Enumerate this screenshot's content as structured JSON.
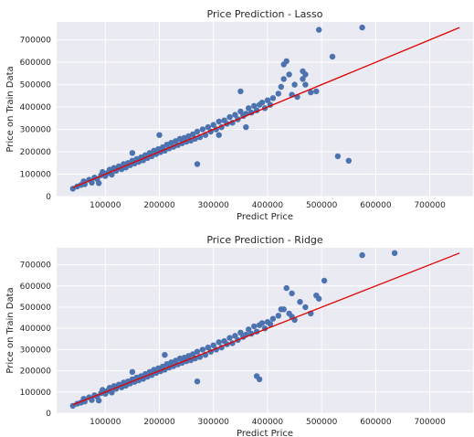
{
  "chart_data": [
    {
      "type": "scatter",
      "title": "Price Prediction - Lasso",
      "xlabel": "Predict Price",
      "ylabel": "Price on Train Data",
      "xlim": [
        10000,
        780000
      ],
      "ylim": [
        0,
        780000
      ],
      "xticks": [
        100000,
        200000,
        300000,
        400000,
        500000,
        600000,
        700000
      ],
      "yticks": [
        0,
        100000,
        200000,
        300000,
        400000,
        500000,
        600000,
        700000
      ],
      "grid": true,
      "series": [
        {
          "color": "#4c72b0",
          "points": [
            [
              40000,
              35000
            ],
            [
              48000,
              45000
            ],
            [
              55000,
              52000
            ],
            [
              60000,
              68000
            ],
            [
              62000,
              55000
            ],
            [
              70000,
              75000
            ],
            [
              75000,
              62000
            ],
            [
              80000,
              85000
            ],
            [
              85000,
              78000
            ],
            [
              88000,
              60000
            ],
            [
              92000,
              95000
            ],
            [
              95000,
              110000
            ],
            [
              100000,
              92000
            ],
            [
              104000,
              105000
            ],
            [
              108000,
              120000
            ],
            [
              112000,
              98000
            ],
            [
              116000,
              128000
            ],
            [
              120000,
              115000
            ],
            [
              125000,
              135000
            ],
            [
              130000,
              122000
            ],
            [
              134000,
              145000
            ],
            [
              138000,
              130000
            ],
            [
              142000,
              150000
            ],
            [
              146000,
              140000
            ],
            [
              150000,
              160000
            ],
            [
              154000,
              148000
            ],
            [
              158000,
              168000
            ],
            [
              162000,
              155000
            ],
            [
              166000,
              175000
            ],
            [
              170000,
              162000
            ],
            [
              174000,
              185000
            ],
            [
              178000,
              172000
            ],
            [
              182000,
              195000
            ],
            [
              186000,
              180000
            ],
            [
              190000,
              205000
            ],
            [
              194000,
              190000
            ],
            [
              198000,
              212000
            ],
            [
              202000,
              198000
            ],
            [
              206000,
              220000
            ],
            [
              210000,
              205000
            ],
            [
              214000,
              232000
            ],
            [
              218000,
              215000
            ],
            [
              222000,
              240000
            ],
            [
              226000,
              222000
            ],
            [
              230000,
              248000
            ],
            [
              234000,
              230000
            ],
            [
              238000,
              258000
            ],
            [
              242000,
              238000
            ],
            [
              246000,
              262000
            ],
            [
              250000,
              245000
            ],
            [
              254000,
              270000
            ],
            [
              258000,
              250000
            ],
            [
              262000,
              278000
            ],
            [
              266000,
              258000
            ],
            [
              270000,
              290000
            ],
            [
              275000,
              265000
            ],
            [
              280000,
              300000
            ],
            [
              285000,
              275000
            ],
            [
              290000,
              310000
            ],
            [
              295000,
              290000
            ],
            [
              300000,
              320000
            ],
            [
              305000,
              300000
            ],
            [
              310000,
              335000
            ],
            [
              315000,
              310000
            ],
            [
              320000,
              340000
            ],
            [
              325000,
              325000
            ],
            [
              330000,
              355000
            ],
            [
              335000,
              330000
            ],
            [
              340000,
              365000
            ],
            [
              345000,
              345000
            ],
            [
              350000,
              380000
            ],
            [
              355000,
              360000
            ],
            [
              360000,
              370000
            ],
            [
              365000,
              395000
            ],
            [
              370000,
              375000
            ],
            [
              375000,
              405000
            ],
            [
              380000,
              385000
            ],
            [
              385000,
              410000
            ],
            [
              390000,
              420000
            ],
            [
              395000,
              395000
            ],
            [
              400000,
              430000
            ],
            [
              405000,
              410000
            ],
            [
              410000,
              440000
            ],
            [
              420000,
              460000
            ],
            [
              425000,
              490000
            ],
            [
              430000,
              525000
            ],
            [
              440000,
              545000
            ],
            [
              445000,
              455000
            ],
            [
              450000,
              500000
            ],
            [
              455000,
              445000
            ],
            [
              465000,
              525000
            ],
            [
              470000,
              500000
            ],
            [
              350000,
              470000
            ],
            [
              270000,
              145000
            ],
            [
              200000,
              275000
            ],
            [
              150000,
              195000
            ],
            [
              310000,
              275000
            ],
            [
              360000,
              310000
            ],
            [
              430000,
              590000
            ],
            [
              435000,
              605000
            ],
            [
              465000,
              560000
            ],
            [
              470000,
              545000
            ],
            [
              480000,
              465000
            ],
            [
              490000,
              470000
            ],
            [
              495000,
              745000
            ],
            [
              520000,
              625000
            ],
            [
              530000,
              180000
            ],
            [
              550000,
              160000
            ],
            [
              575000,
              755000
            ]
          ]
        }
      ],
      "line": {
        "color": "#e00000",
        "from": [
          40000,
          40000
        ],
        "to": [
          755000,
          755000
        ]
      }
    },
    {
      "type": "scatter",
      "title": "Price Prediction - Ridge",
      "xlabel": "Predict Price",
      "ylabel": "Price on Train Data",
      "xlim": [
        10000,
        780000
      ],
      "ylim": [
        0,
        780000
      ],
      "xticks": [
        100000,
        200000,
        300000,
        400000,
        500000,
        600000,
        700000
      ],
      "yticks": [
        0,
        100000,
        200000,
        300000,
        400000,
        500000,
        600000,
        700000
      ],
      "grid": true,
      "series": [
        {
          "color": "#4c72b0",
          "points": [
            [
              40000,
              35000
            ],
            [
              48000,
              45000
            ],
            [
              55000,
              50000
            ],
            [
              60000,
              68000
            ],
            [
              62000,
              55000
            ],
            [
              70000,
              75000
            ],
            [
              75000,
              62000
            ],
            [
              80000,
              85000
            ],
            [
              85000,
              78000
            ],
            [
              88000,
              60000
            ],
            [
              92000,
              95000
            ],
            [
              95000,
              110000
            ],
            [
              100000,
              92000
            ],
            [
              104000,
              105000
            ],
            [
              108000,
              120000
            ],
            [
              112000,
              98000
            ],
            [
              116000,
              128000
            ],
            [
              120000,
              115000
            ],
            [
              125000,
              135000
            ],
            [
              130000,
              122000
            ],
            [
              134000,
              145000
            ],
            [
              138000,
              130000
            ],
            [
              142000,
              150000
            ],
            [
              146000,
              140000
            ],
            [
              150000,
              160000
            ],
            [
              154000,
              148000
            ],
            [
              158000,
              168000
            ],
            [
              162000,
              155000
            ],
            [
              166000,
              175000
            ],
            [
              170000,
              162000
            ],
            [
              174000,
              185000
            ],
            [
              178000,
              172000
            ],
            [
              182000,
              195000
            ],
            [
              186000,
              180000
            ],
            [
              190000,
              205000
            ],
            [
              194000,
              190000
            ],
            [
              198000,
              212000
            ],
            [
              202000,
              198000
            ],
            [
              206000,
              220000
            ],
            [
              210000,
              205000
            ],
            [
              214000,
              232000
            ],
            [
              218000,
              215000
            ],
            [
              222000,
              240000
            ],
            [
              226000,
              222000
            ],
            [
              230000,
              248000
            ],
            [
              234000,
              230000
            ],
            [
              238000,
              258000
            ],
            [
              242000,
              238000
            ],
            [
              246000,
              262000
            ],
            [
              250000,
              245000
            ],
            [
              254000,
              270000
            ],
            [
              258000,
              250000
            ],
            [
              262000,
              278000
            ],
            [
              266000,
              258000
            ],
            [
              270000,
              290000
            ],
            [
              275000,
              265000
            ],
            [
              280000,
              300000
            ],
            [
              285000,
              275000
            ],
            [
              290000,
              310000
            ],
            [
              295000,
              290000
            ],
            [
              300000,
              320000
            ],
            [
              305000,
              300000
            ],
            [
              310000,
              335000
            ],
            [
              315000,
              310000
            ],
            [
              320000,
              340000
            ],
            [
              325000,
              325000
            ],
            [
              330000,
              355000
            ],
            [
              335000,
              330000
            ],
            [
              340000,
              365000
            ],
            [
              345000,
              345000
            ],
            [
              350000,
              380000
            ],
            [
              355000,
              360000
            ],
            [
              360000,
              370000
            ],
            [
              365000,
              395000
            ],
            [
              370000,
              375000
            ],
            [
              375000,
              410000
            ],
            [
              380000,
              385000
            ],
            [
              385000,
              415000
            ],
            [
              390000,
              425000
            ],
            [
              395000,
              400000
            ],
            [
              400000,
              430000
            ],
            [
              405000,
              420000
            ],
            [
              410000,
              445000
            ],
            [
              420000,
              460000
            ],
            [
              425000,
              490000
            ],
            [
              430000,
              490000
            ],
            [
              440000,
              470000
            ],
            [
              445000,
              455000
            ],
            [
              450000,
              440000
            ],
            [
              460000,
              525000
            ],
            [
              470000,
              500000
            ],
            [
              270000,
              150000
            ],
            [
              210000,
              275000
            ],
            [
              150000,
              195000
            ],
            [
              380000,
              175000
            ],
            [
              385000,
              160000
            ],
            [
              435000,
              590000
            ],
            [
              445000,
              565000
            ],
            [
              480000,
              470000
            ],
            [
              490000,
              555000
            ],
            [
              495000,
              540000
            ],
            [
              505000,
              625000
            ],
            [
              575000,
              745000
            ],
            [
              635000,
              755000
            ]
          ]
        }
      ],
      "line": {
        "color": "#e00000",
        "from": [
          40000,
          40000
        ],
        "to": [
          755000,
          755000
        ]
      }
    }
  ]
}
